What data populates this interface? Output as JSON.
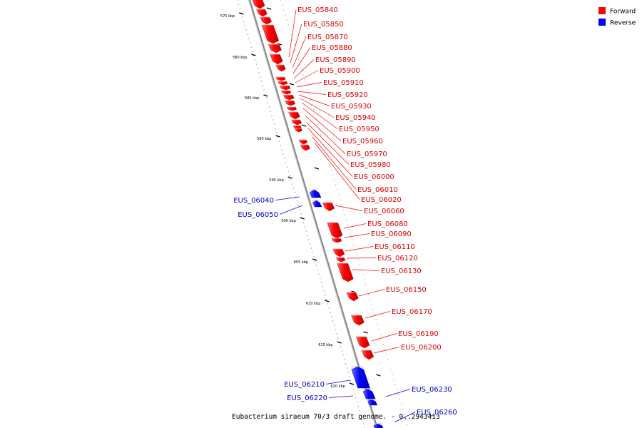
{
  "legend": {
    "items": [
      {
        "label": "Forward",
        "color": "#ff0000"
      },
      {
        "label": "Reverse",
        "color": "#0000ff"
      }
    ]
  },
  "colors": {
    "forward": "#ff0000",
    "forward_label": "#dd0000",
    "reverse": "#0000ff",
    "reverse_label": "#0000cc",
    "backbone": "#8a8a8a"
  },
  "footer": {
    "caption": "Eubacterium siraeum 70/3 draft genome. - 0..2943413"
  },
  "scale": {
    "ticks": [
      "575 kbp",
      "580 kbp",
      "585 kbp",
      "590 kbp",
      "595 kbp",
      "600 kbp",
      "605 kbp",
      "610 kbp",
      "615 kbp",
      "620 kbp"
    ]
  },
  "genes": [
    {
      "id": "EUS_05840",
      "strand": "forward"
    },
    {
      "id": "EUS_05850",
      "strand": "forward"
    },
    {
      "id": "EUS_05870",
      "strand": "forward"
    },
    {
      "id": "EUS_05880",
      "strand": "forward"
    },
    {
      "id": "EUS_05890",
      "strand": "forward"
    },
    {
      "id": "EUS_05900",
      "strand": "forward"
    },
    {
      "id": "EUS_05910",
      "strand": "forward"
    },
    {
      "id": "EUS_05920",
      "strand": "forward"
    },
    {
      "id": "EUS_05930",
      "strand": "forward"
    },
    {
      "id": "EUS_05940",
      "strand": "forward"
    },
    {
      "id": "EUS_05950",
      "strand": "forward"
    },
    {
      "id": "EUS_05960",
      "strand": "forward"
    },
    {
      "id": "EUS_05970",
      "strand": "forward"
    },
    {
      "id": "EUS_05980",
      "strand": "forward"
    },
    {
      "id": "EUS_06000",
      "strand": "forward"
    },
    {
      "id": "EUS_06010",
      "strand": "forward"
    },
    {
      "id": "EUS_06020",
      "strand": "forward"
    },
    {
      "id": "EUS_06040",
      "strand": "reverse"
    },
    {
      "id": "EUS_06050",
      "strand": "reverse"
    },
    {
      "id": "EUS_06060",
      "strand": "forward"
    },
    {
      "id": "EUS_06080",
      "strand": "forward"
    },
    {
      "id": "EUS_06090",
      "strand": "forward"
    },
    {
      "id": "EUS_06110",
      "strand": "forward"
    },
    {
      "id": "EUS_06120",
      "strand": "forward"
    },
    {
      "id": "EUS_06130",
      "strand": "forward"
    },
    {
      "id": "EUS_06150",
      "strand": "forward"
    },
    {
      "id": "EUS_06170",
      "strand": "forward"
    },
    {
      "id": "EUS_06190",
      "strand": "forward"
    },
    {
      "id": "EUS_06200",
      "strand": "forward"
    },
    {
      "id": "EUS_06210",
      "strand": "reverse"
    },
    {
      "id": "EUS_06220",
      "strand": "reverse"
    },
    {
      "id": "EUS_06230",
      "strand": "reverse"
    },
    {
      "id": "EUS_06260",
      "strand": "reverse"
    }
  ]
}
